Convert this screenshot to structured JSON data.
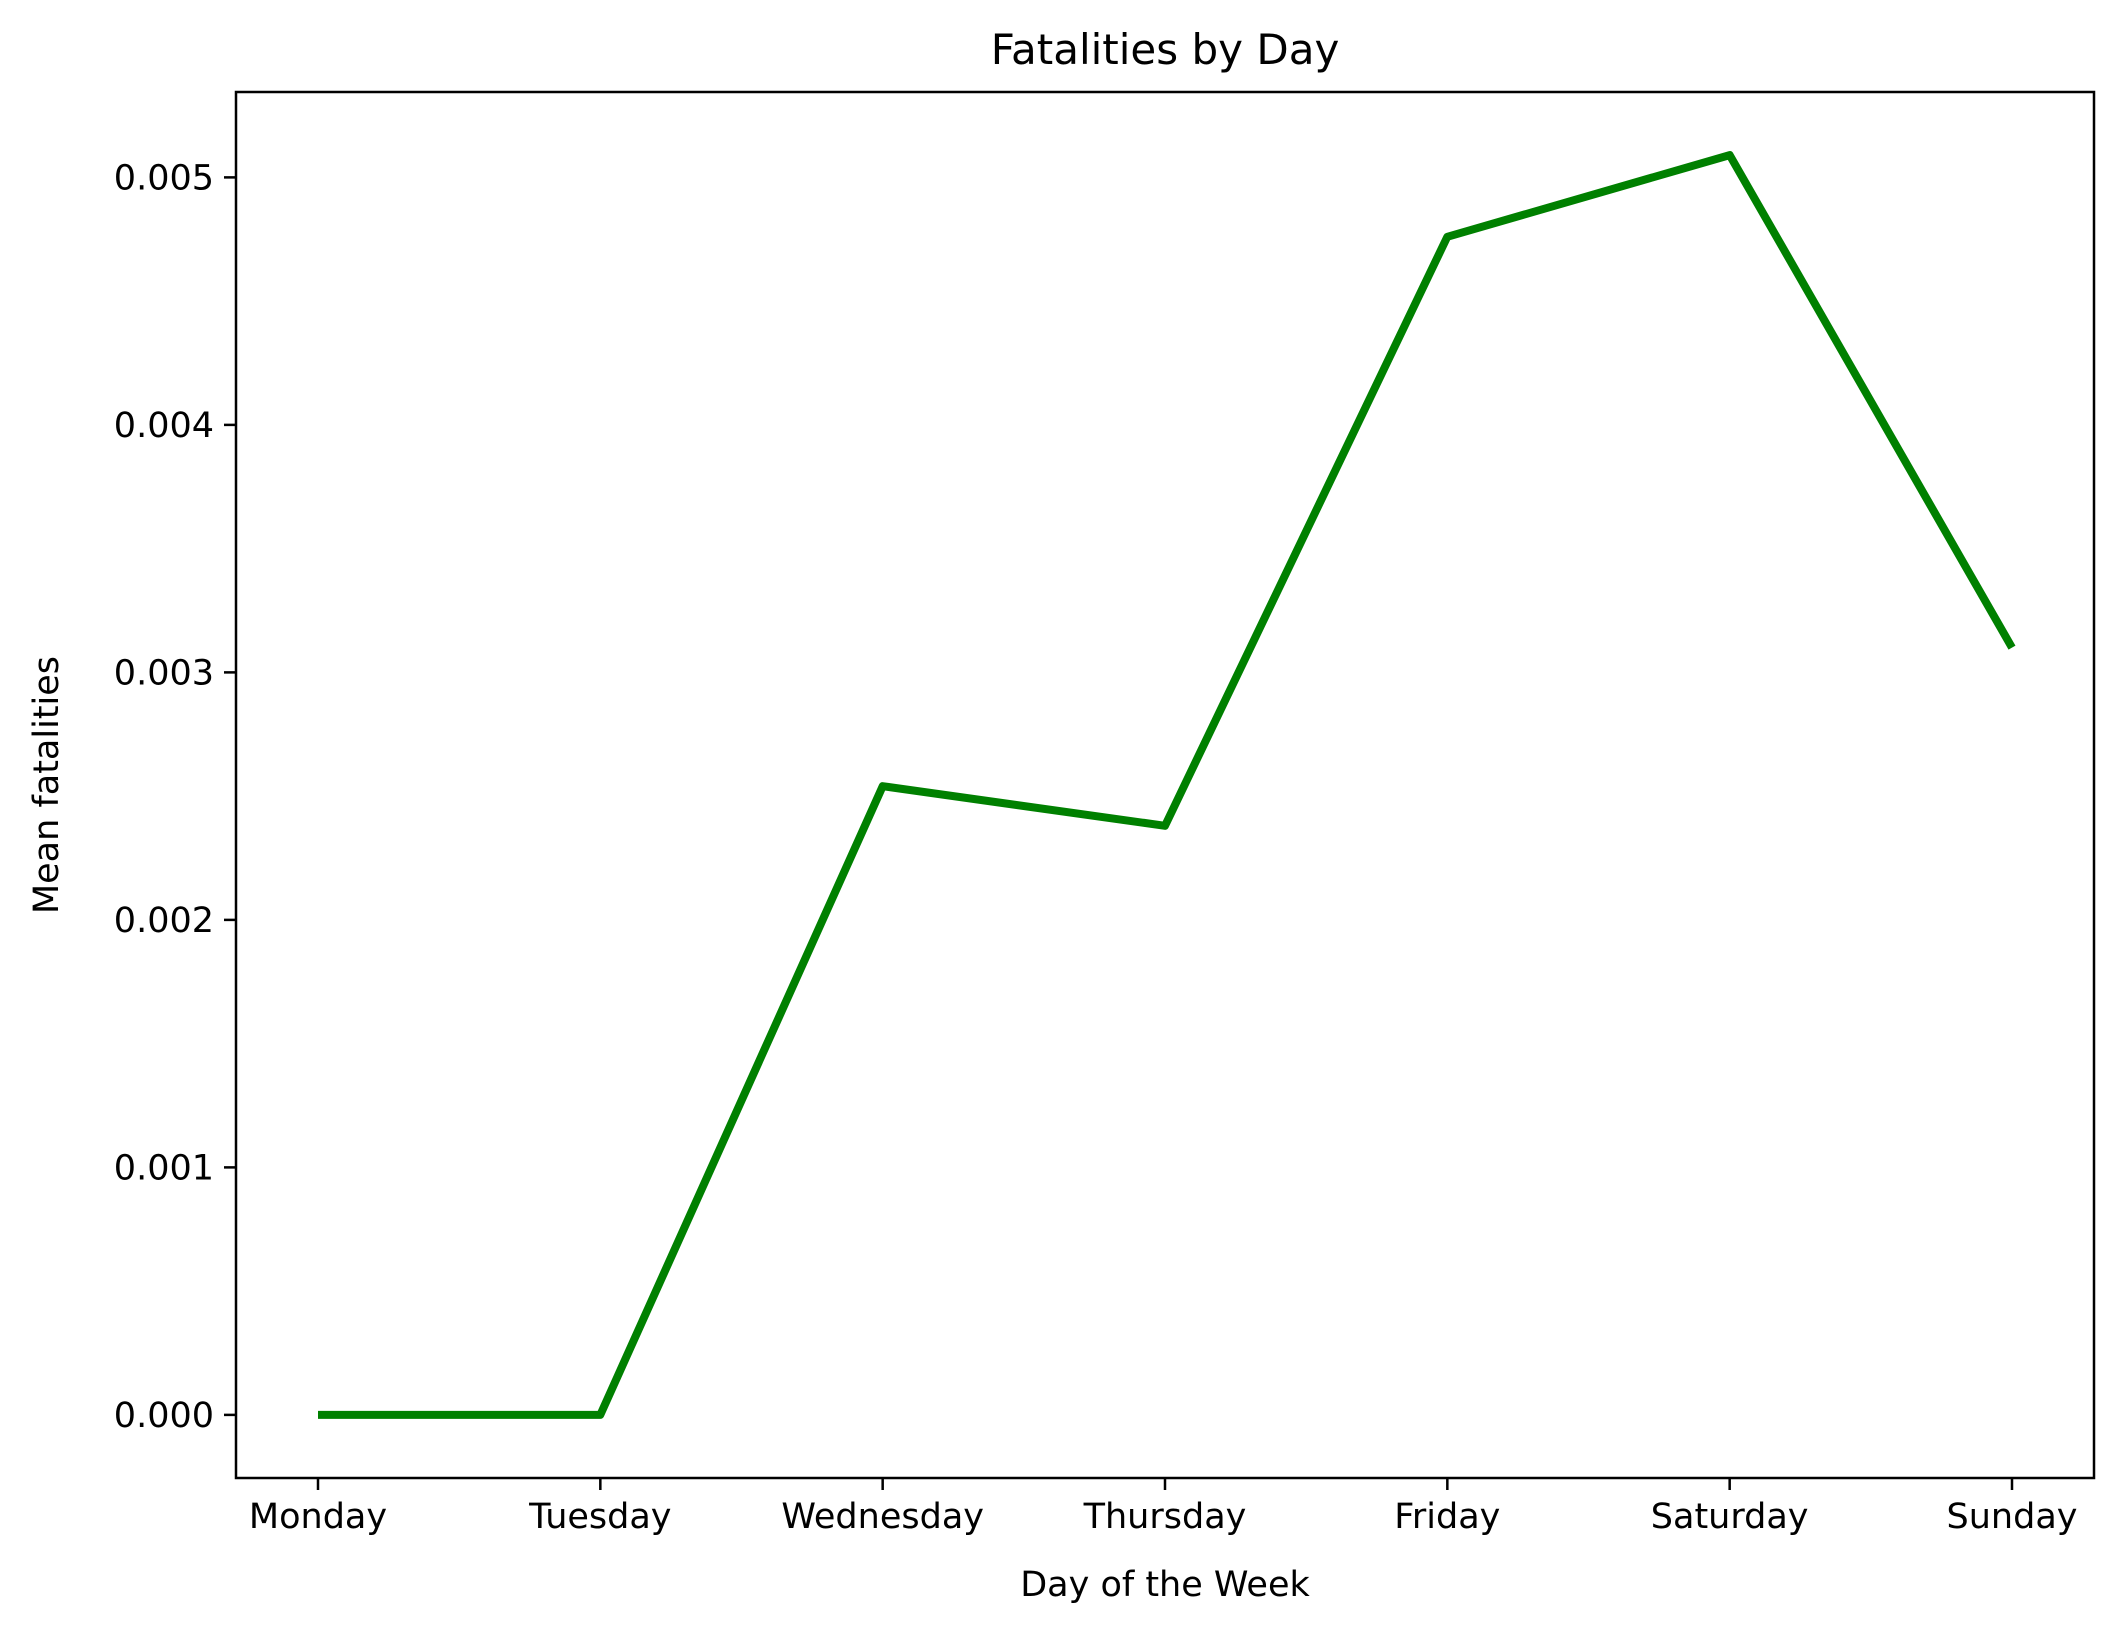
{
  "chart_data": {
    "type": "line",
    "title": "Fatalities by Day",
    "xlabel": "Day of the Week",
    "ylabel": "Mean fatalities",
    "categories": [
      "Monday",
      "Tuesday",
      "Wednesday",
      "Thursday",
      "Friday",
      "Saturday",
      "Sunday"
    ],
    "series": [
      {
        "values": [
          0.0,
          0.0,
          0.00254,
          0.00238,
          0.00476,
          0.00509,
          0.0031
        ],
        "color": "#008000"
      }
    ],
    "yticks": [
      0.0,
      0.001,
      0.002,
      0.003,
      0.004,
      0.005
    ],
    "ytick_labels": [
      "0.000",
      "0.001",
      "0.002",
      "0.003",
      "0.004",
      "0.005"
    ],
    "ylim": [
      -0.000255,
      0.005345
    ],
    "grid": false,
    "legend": "none"
  }
}
